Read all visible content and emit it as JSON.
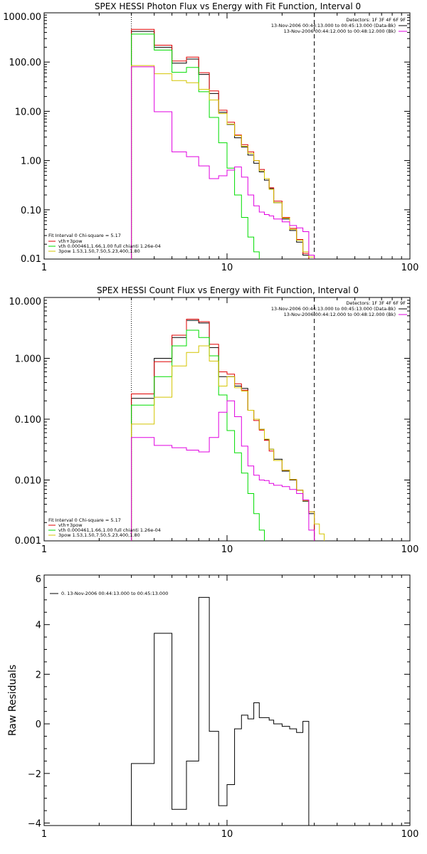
{
  "chart_data": [
    {
      "type": "line",
      "title": "SPEX HESSI Photon Flux vs Energy with Fit Function, Interval 0",
      "ylabel": "",
      "xlabel": "",
      "xscale": "log",
      "yscale": "log",
      "xlim": [
        1,
        100
      ],
      "ylim": [
        0.01,
        1000
      ],
      "xticks": [
        "1",
        "10",
        "100"
      ],
      "yticks": [
        "1000.00",
        "100.00",
        "10.00",
        "1.00",
        "0.10",
        "0.01"
      ],
      "annotations": {
        "detectors": "Detectors: 1F 3F 4F 6F 9F",
        "interval": "13-Nov-2006 00:44:13.000 to 00:45:13.000 (Data-Bk)",
        "background": "13-Nov-2006 00:44:12.000 to 00:48:12.000 (Bk)"
      },
      "fit_info": {
        "header": "Fit Interval 0   Chi-square = 5.17",
        "lines": [
          "vth+3pow",
          "vth 0.000461,1.66,1.00  full chianti 1.26e-04",
          "3pow 1.53,1.50,7.50,5.23,400,1.80"
        ]
      },
      "vlines": {
        "dotted": 3,
        "dashed": 30
      },
      "edges": [
        3,
        4,
        5,
        6,
        7,
        8,
        9,
        10,
        11,
        12,
        13,
        14,
        15,
        16,
        17,
        18,
        20,
        22,
        24,
        26,
        28,
        30,
        32,
        34
      ],
      "colors": {
        "data": "#000000",
        "total": "#e00000",
        "vth": "#00dd00",
        "3pow": "#d4c400",
        "bk": "#e000e0"
      },
      "series": [
        {
          "name": "data",
          "values": [
            420,
            200,
            95,
            115,
            56,
            23,
            9.5,
            5.4,
            2.9,
            1.88,
            1.29,
            0.88,
            0.59,
            0.4,
            0.27,
            0.14,
            0.065,
            0.038,
            0.022,
            0.012,
            null,
            null,
            null
          ]
        },
        {
          "name": "vth+3pow",
          "values": [
            460,
            220,
            105,
            126,
            61,
            26,
            10.5,
            6,
            3.3,
            2.1,
            1.5,
            1.0,
            0.66,
            0.43,
            0.28,
            0.15,
            0.07,
            0.042,
            0.025,
            0.013,
            null,
            null,
            null
          ]
        },
        {
          "name": "vth",
          "values": [
            370,
            175,
            62,
            78,
            25,
            7.5,
            2.3,
            0.7,
            0.2,
            0.07,
            0.028,
            0.014,
            null,
            null,
            null,
            null,
            null,
            null,
            null,
            null,
            null,
            null,
            null
          ]
        },
        {
          "name": "3pow",
          "values": [
            85,
            58,
            42,
            38,
            28,
            17,
            9,
            5.5,
            3.2,
            1.95,
            1.4,
            1.0,
            0.62,
            0.43,
            0.26,
            0.14,
            0.068,
            0.04,
            0.024,
            0.014,
            0.011,
            null,
            null
          ]
        },
        {
          "name": "bk",
          "values": [
            80,
            9.8,
            1.5,
            1.2,
            0.78,
            0.43,
            0.49,
            0.64,
            0.74,
            0.46,
            0.2,
            0.12,
            0.09,
            0.08,
            0.075,
            0.065,
            0.057,
            0.048,
            0.043,
            0.036,
            0.012,
            null,
            null
          ]
        }
      ]
    },
    {
      "type": "line",
      "title": "SPEX HESSI Count Flux vs Energy with Fit Function, Interval 0",
      "ylabel": "",
      "xlabel": "",
      "xscale": "log",
      "yscale": "log",
      "xlim": [
        1,
        100
      ],
      "ylim": [
        0.001,
        10
      ],
      "xticks": [
        "1",
        "10",
        "100"
      ],
      "yticks": [
        "10.000",
        "1.000",
        "0.100",
        "0.010",
        "0.001"
      ],
      "annotations": {
        "detectors": "Detectors: 1F 3F 4F 6F 9F",
        "interval": "13-Nov-2006 00:44:13.000 to 00:45:13.000 (Data-Bk)",
        "background": "13-Nov-2006 00:44:12.000 to 00:48:12.000 (Bk)"
      },
      "fit_info": {
        "header": "Fit Interval 0   Chi-square = 5.17",
        "lines": [
          "vth+3pow",
          "vth 0.000461,1.66,1.00  full chianti 1.26e-04",
          "3pow 1.53,1.50,7.50,5.23,400,1.80"
        ]
      },
      "vlines": {
        "dotted": 3,
        "dashed": 30
      },
      "edges": [
        3,
        4,
        5,
        6,
        7,
        8,
        9,
        10,
        11,
        12,
        13,
        14,
        15,
        16,
        17,
        18,
        20,
        22,
        24,
        26,
        28,
        30,
        32,
        34
      ],
      "colors": {
        "data": "#000000",
        "total": "#e00000",
        "vth": "#00dd00",
        "3pow": "#d4c400",
        "bk": "#e000e0"
      },
      "series": [
        {
          "name": "data",
          "values": [
            0.22,
            1.0,
            2.2,
            4.2,
            3.8,
            1.5,
            0.5,
            0.5,
            0.35,
            0.32,
            0.14,
            0.1,
            0.068,
            0.046,
            0.032,
            0.022,
            0.014,
            0.01,
            0.0068,
            0.0045,
            0.0028,
            null,
            null
          ]
        },
        {
          "name": "vth+3pow",
          "values": [
            0.26,
            0.88,
            2.4,
            4.4,
            4.0,
            1.7,
            0.6,
            0.55,
            0.38,
            0.3,
            0.14,
            0.095,
            0.066,
            0.045,
            0.03,
            0.021,
            0.0145,
            0.0102,
            0.0068,
            0.0046,
            0.003,
            null,
            null
          ]
        },
        {
          "name": "vth",
          "values": [
            0.17,
            0.5,
            1.6,
            2.9,
            2.2,
            1.1,
            0.25,
            0.065,
            0.028,
            0.013,
            0.006,
            0.0028,
            0.0015,
            null,
            null,
            null,
            null,
            null,
            null,
            null,
            null,
            null,
            null
          ]
        },
        {
          "name": "3pow",
          "values": [
            0.083,
            0.23,
            0.75,
            1.25,
            1.6,
            0.9,
            0.35,
            0.5,
            0.33,
            0.29,
            0.14,
            0.1,
            0.068,
            0.047,
            0.032,
            0.021,
            0.0145,
            0.0102,
            0.0068,
            0.0046,
            0.003,
            0.0019,
            0.0013
          ]
        },
        {
          "name": "bk",
          "values": [
            0.05,
            0.037,
            0.034,
            0.031,
            0.029,
            0.05,
            0.13,
            0.2,
            0.11,
            0.036,
            0.017,
            0.012,
            0.01,
            0.0098,
            0.0088,
            0.0082,
            0.0078,
            0.007,
            0.006,
            0.0047,
            0.0015,
            null,
            null
          ]
        }
      ]
    },
    {
      "type": "line",
      "title": "",
      "ylabel": "Raw Residuals",
      "xlabel": "",
      "xscale": "log",
      "yscale": "linear",
      "xlim": [
        1,
        100
      ],
      "ylim": [
        -4.1,
        6
      ],
      "xticks": [
        "1",
        "10",
        "100"
      ],
      "yticks": [
        "6",
        "4",
        "2",
        "0",
        "−2",
        "−4"
      ],
      "legend": "0. 13-Nov-2006 00:44:13.000 to 00:45:13.000",
      "edges": [
        3,
        4,
        5,
        6,
        7,
        8,
        9,
        10,
        11,
        12,
        13,
        14,
        15,
        16,
        17,
        18,
        20,
        22,
        24,
        26,
        28,
        30
      ],
      "colors": {
        "data": "#000000"
      },
      "series": [
        {
          "name": "0. 13-Nov-2006 00:44:13.000 to 00:45:13.000",
          "values": [
            -1.6,
            3.65,
            -3.45,
            -1.5,
            5.1,
            -0.3,
            -3.3,
            -2.45,
            -0.2,
            0.35,
            0.2,
            0.85,
            0.25,
            0.25,
            0.15,
            0.0,
            -0.1,
            -0.2,
            -0.35,
            0.1
          ]
        }
      ]
    }
  ]
}
